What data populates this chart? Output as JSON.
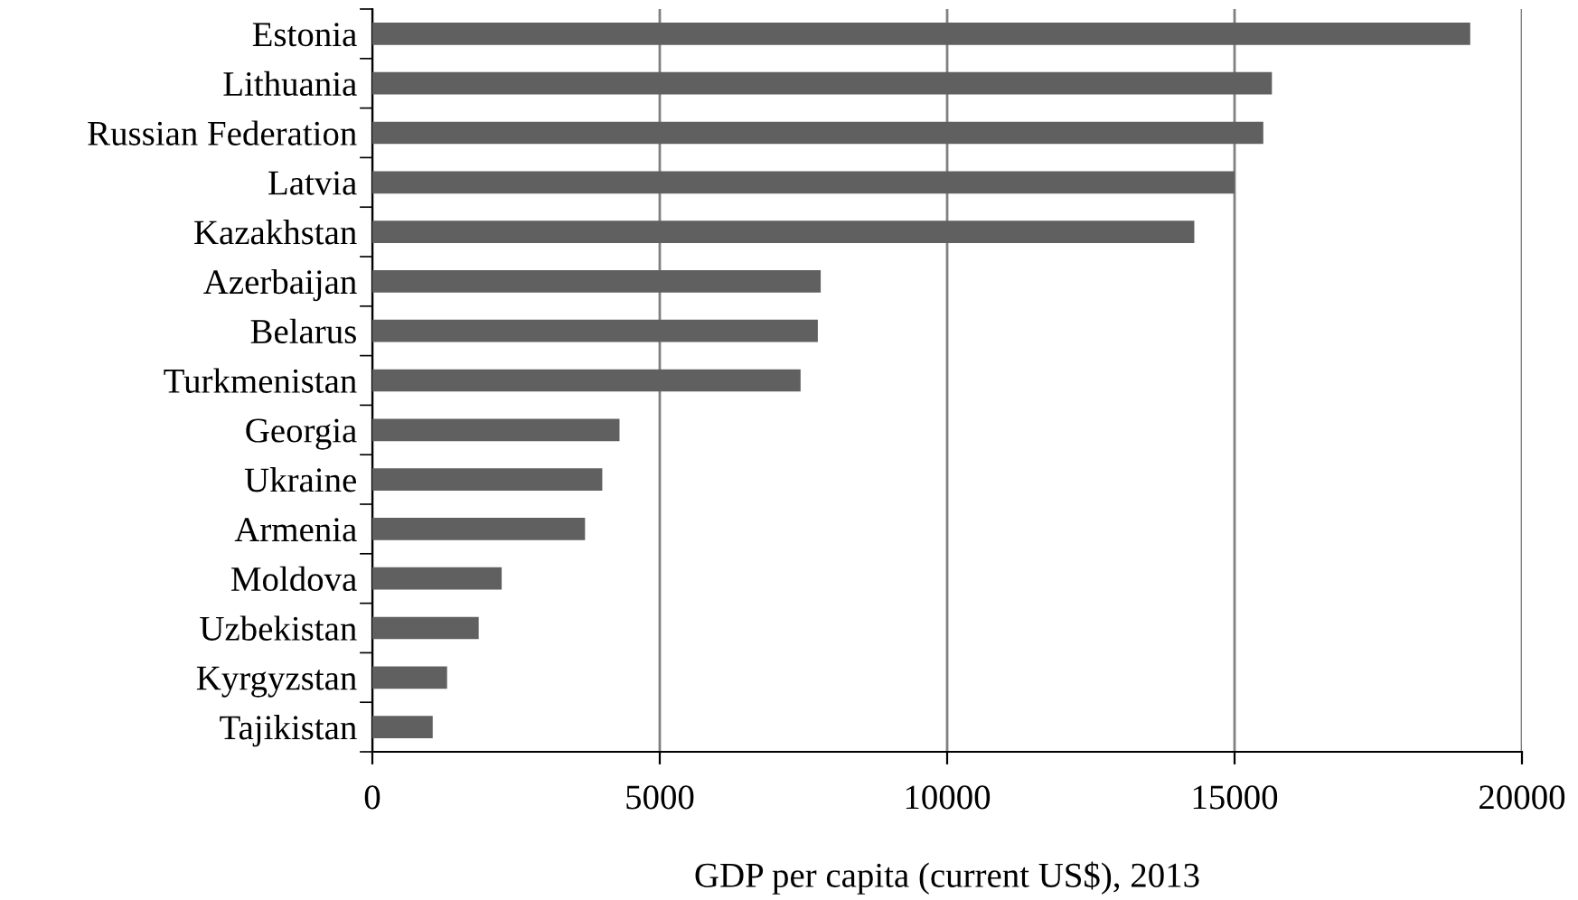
{
  "chart_data": {
    "type": "bar",
    "orientation": "horizontal",
    "xlabel": "GDP per capita (current US$), 2013",
    "categories": [
      "Estonia",
      "Lithuania",
      "Russian Federation",
      "Latvia",
      "Kazakhstan",
      "Azerbaijan",
      "Belarus",
      "Turkmenistan",
      "Georgia",
      "Ukraine",
      "Armenia",
      "Moldova",
      "Uzbekistan",
      "Kyrgyzstan",
      "Tajikistan"
    ],
    "series": [
      {
        "color": "#606060",
        "values": [
          19100,
          15650,
          15500,
          15000,
          14300,
          7800,
          7750,
          7450,
          4300,
          4000,
          3700,
          2250,
          1850,
          1300,
          1050
        ]
      }
    ],
    "xlim": [
      0,
      20000
    ],
    "xticks": [
      0,
      5000,
      10000,
      15000,
      20000
    ],
    "grid": "x",
    "legend": false
  }
}
